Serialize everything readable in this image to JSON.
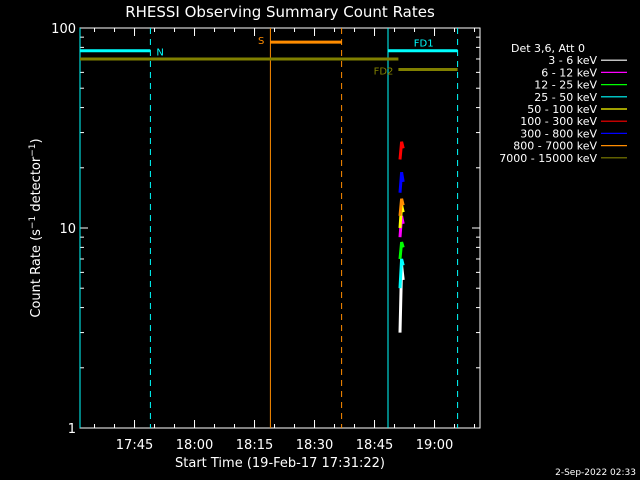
{
  "chart_data": {
    "type": "line",
    "title": "RHESSI Observing Summary Count Rates",
    "xlabel": "Start Time (19-Feb-17 17:31:22)",
    "ylabel_parts": [
      "Count Rate (s",
      "−1",
      " detector",
      "−1",
      ")"
    ],
    "yscale": "log",
    "ylim": [
      1,
      100
    ],
    "xlim_minutes": [
      0,
      100
    ],
    "x_tick_labels": [
      "17:45",
      "18:00",
      "18:15",
      "18:30",
      "18:45",
      "19:00"
    ],
    "x_tick_minutes": [
      13.63,
      28.63,
      43.63,
      58.63,
      73.63,
      88.63
    ],
    "y_tick_labels": [
      "1",
      "10",
      "100"
    ],
    "y_tick_values": [
      1,
      10,
      100
    ],
    "legend_title": "Det 3,6, Att 0",
    "legend_position": "right",
    "series": [
      {
        "name": "3 - 6 keV",
        "color": "#ffffff",
        "x": [
          80.0,
          80.4,
          80.8
        ],
        "y": [
          3.0,
          6.5,
          5.5
        ]
      },
      {
        "name": "6 - 12 keV",
        "color": "#ff00ff",
        "x": [
          80.0,
          80.4,
          80.8
        ],
        "y": [
          9.0,
          11.5,
          10.5
        ]
      },
      {
        "name": "12 - 25 keV",
        "color": "#00ff00",
        "x": [
          80.0,
          80.4,
          80.8
        ],
        "y": [
          7.0,
          8.5,
          8.0
        ]
      },
      {
        "name": "25 - 50 keV",
        "color": "#00ffff",
        "x": [
          80.0,
          80.4,
          80.8
        ],
        "y": [
          5.0,
          7.0,
          6.5
        ]
      },
      {
        "name": "50 - 100 keV",
        "color": "#ffff00",
        "x": [
          80.0,
          80.4,
          80.8
        ],
        "y": [
          10.0,
          13.0,
          12.0
        ]
      },
      {
        "name": "100 - 300 keV",
        "color": "#ff0000",
        "x": [
          80.0,
          80.4,
          80.8
        ],
        "y": [
          22.0,
          27.0,
          25.0
        ]
      },
      {
        "name": "300 - 800 keV",
        "color": "#0000ff",
        "x": [
          80.0,
          80.4,
          80.8
        ],
        "y": [
          15.0,
          19.0,
          17.0
        ]
      },
      {
        "name": "800 - 7000 keV",
        "color": "#ff8c00",
        "x": [
          80.0,
          80.4,
          80.8
        ],
        "y": [
          11.5,
          14.0,
          13.0
        ]
      },
      {
        "name": "7000 - 15000 keV",
        "color": "#808000",
        "x": [],
        "y": []
      }
    ],
    "annotations": [
      {
        "label": "N",
        "color": "#00ffff",
        "x": [
          0,
          17.6
        ],
        "y": 77,
        "solid_x": 0,
        "dashed_x": 17.6
      },
      {
        "label": "S",
        "color": "#ff8c00",
        "x": [
          47.6,
          65.4
        ],
        "y": 85,
        "solid_x": 47.6,
        "dashed_x": 65.4
      },
      {
        "label": "FD1",
        "color": "#00ffff",
        "x": [
          77.0,
          94.4
        ],
        "y": 77,
        "solid_x": 77.0,
        "dashed_x": 94.4
      },
      {
        "label": "FD2",
        "color": "#808000",
        "x": [
          79.6,
          94.4
        ],
        "y": 62
      },
      {
        "label": "",
        "color": "#808000",
        "x": [
          0,
          79.6
        ],
        "y": 70
      }
    ],
    "footer_date": "2-Sep-2022 02:33"
  }
}
